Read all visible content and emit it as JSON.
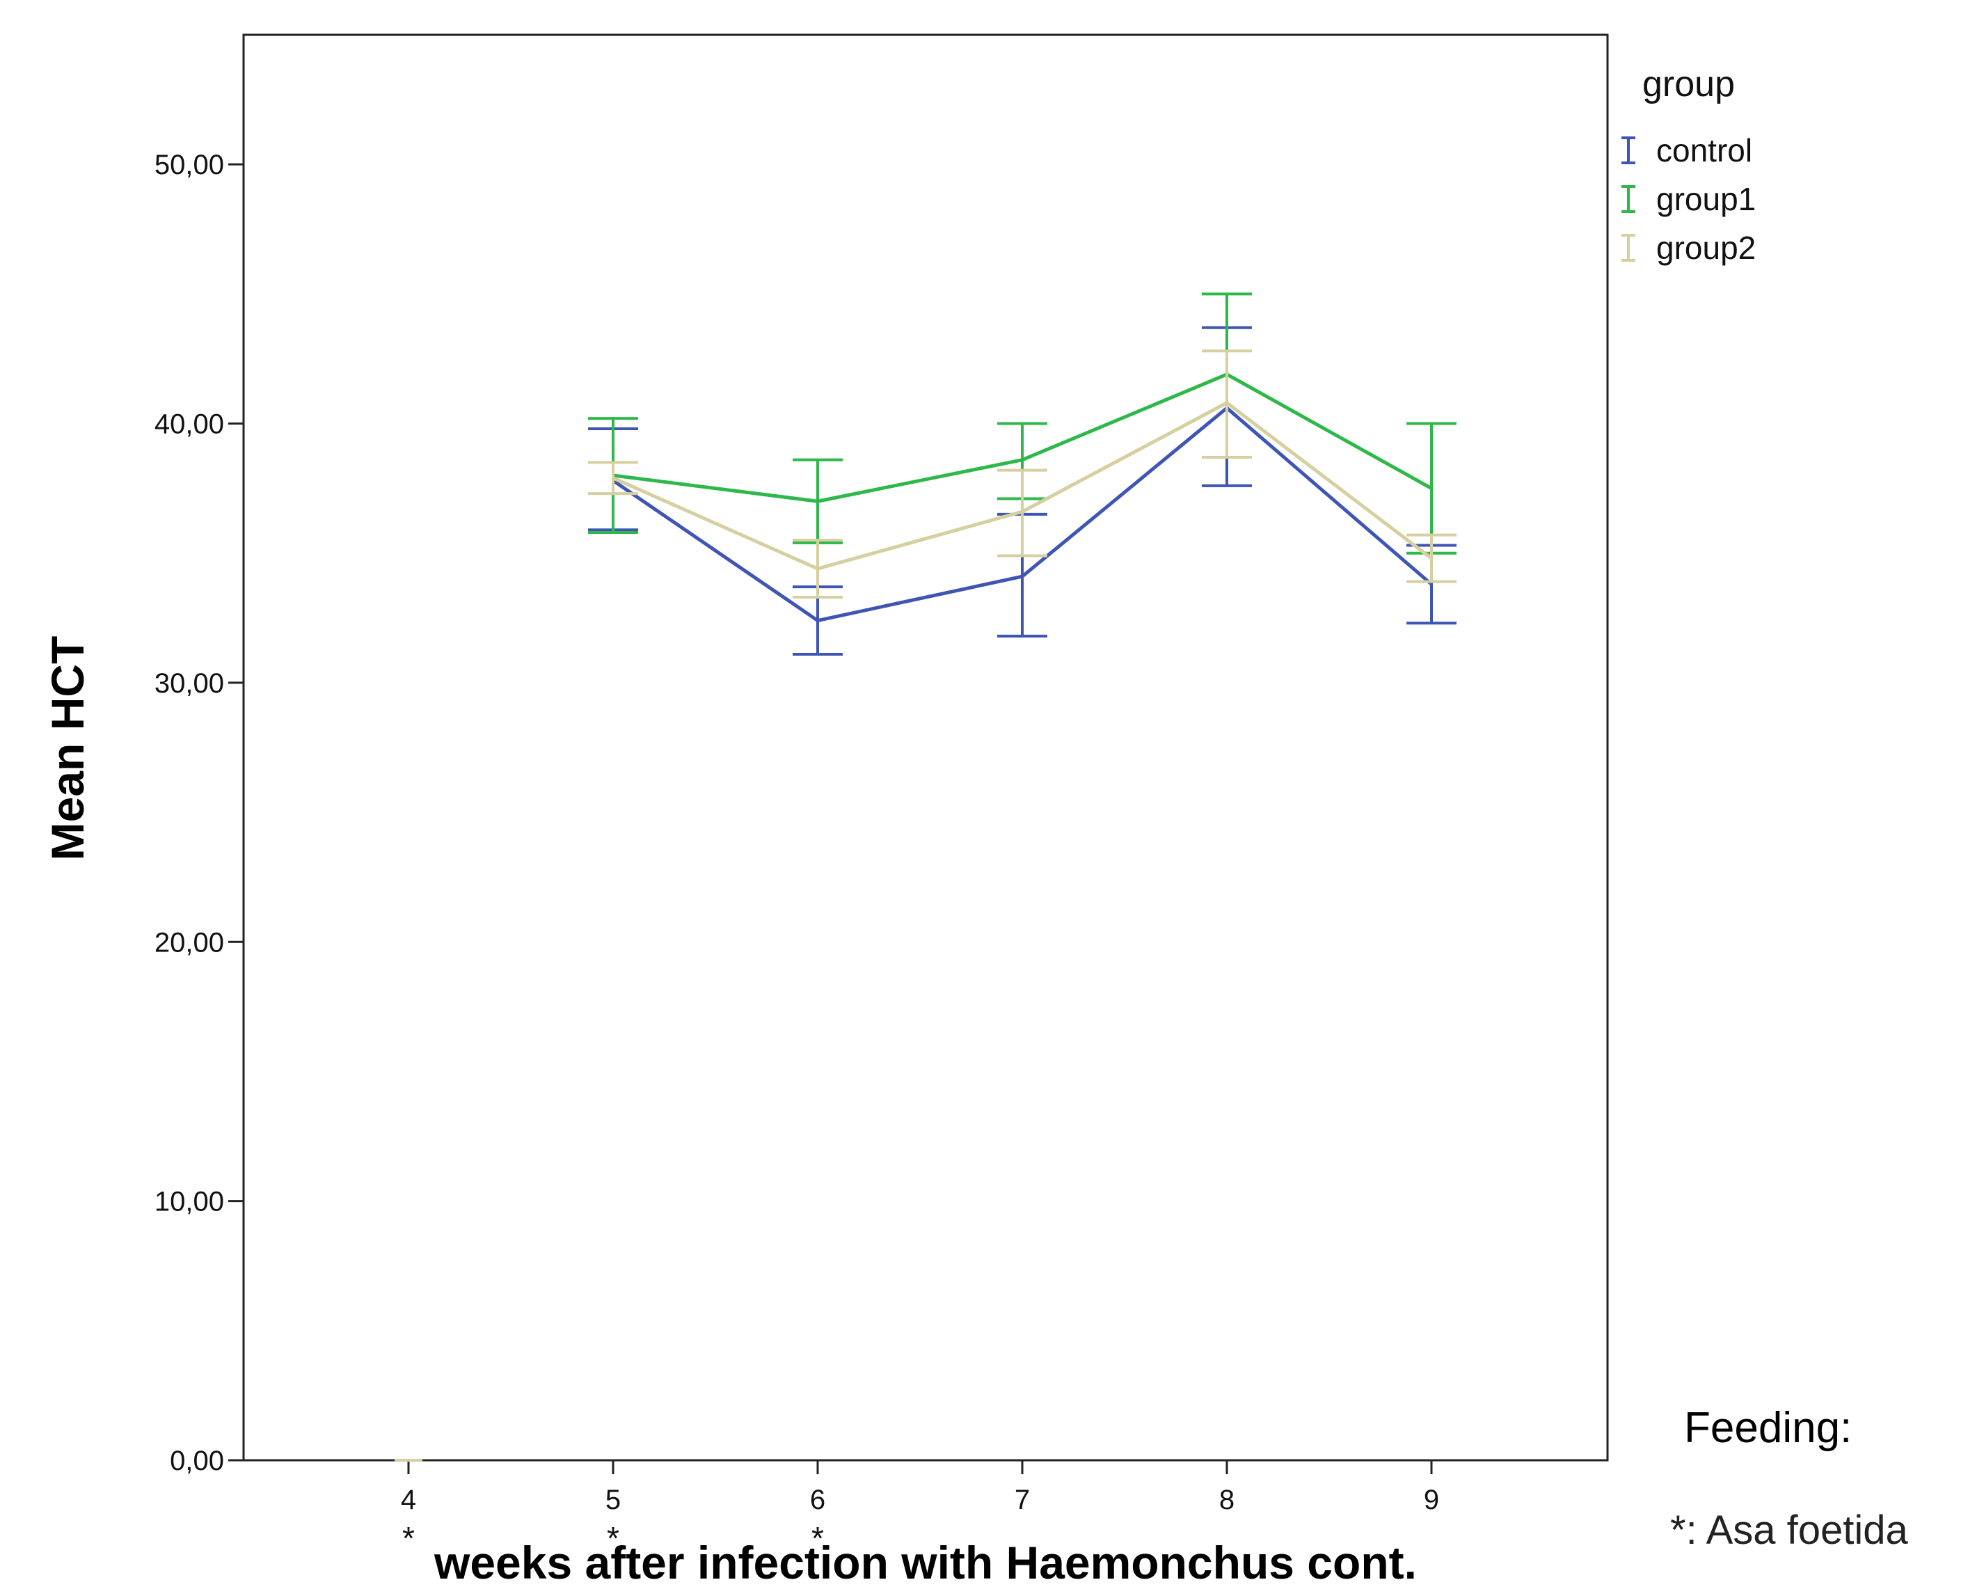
{
  "chart_data": {
    "type": "line",
    "title": "",
    "xlabel": "weeks after infection with Haemonchus cont.",
    "ylabel": "Mean HCT",
    "categories": [
      "4",
      "5",
      "6",
      "7",
      "8",
      "9"
    ],
    "category_marks": [
      "*",
      "*",
      "*",
      "",
      "",
      ""
    ],
    "yticks": [
      "0,00",
      "10,00",
      "20,00",
      "30,00",
      "40,00",
      "50,00"
    ],
    "ylim": [
      0,
      55
    ],
    "error_bars": true,
    "grid": false,
    "legend": {
      "title": "group",
      "position": "top-right outside plot",
      "marker": "I"
    },
    "series": [
      {
        "name": "control",
        "color": "#3f55b5",
        "values": [
          null,
          37.8,
          32.4,
          34.1,
          40.6,
          33.8
        ],
        "lower": [
          null,
          35.9,
          31.1,
          31.8,
          37.6,
          32.3
        ],
        "upper": [
          null,
          39.8,
          33.7,
          36.5,
          43.7,
          35.3
        ]
      },
      {
        "name": "group1",
        "color": "#2eb84a",
        "values": [
          null,
          38.0,
          37.0,
          38.6,
          41.9,
          37.5
        ],
        "lower": [
          null,
          35.8,
          35.4,
          37.1,
          38.7,
          35.0
        ],
        "upper": [
          null,
          40.2,
          38.6,
          40.0,
          45.0,
          40.0
        ]
      },
      {
        "name": "group2",
        "color": "#d6cfa0",
        "values": [
          null,
          37.9,
          34.4,
          36.6,
          40.8,
          34.8
        ],
        "lower": [
          null,
          37.3,
          33.3,
          34.9,
          38.7,
          33.9
        ],
        "upper": [
          null,
          38.5,
          35.5,
          38.2,
          42.8,
          35.7
        ]
      }
    ]
  },
  "note": {
    "title": "Feeding:",
    "text": "*: Asa foetida"
  }
}
